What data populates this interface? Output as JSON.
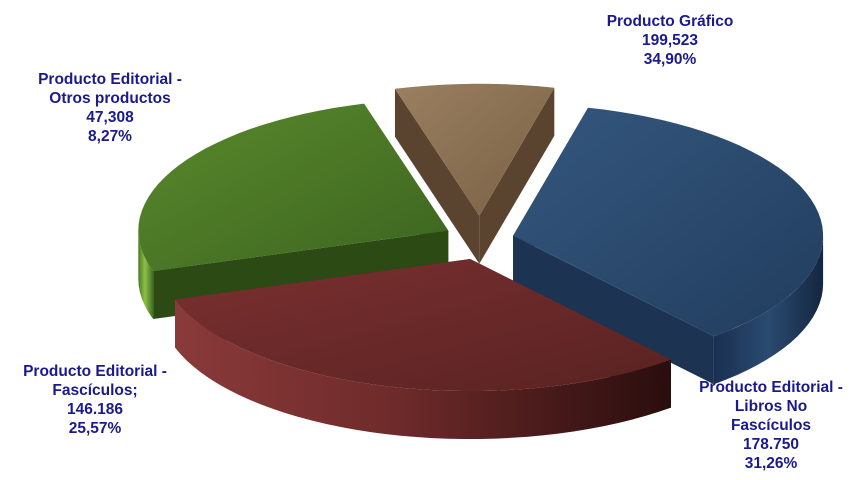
{
  "chart_data": {
    "type": "pie",
    "style": "3d-exploded",
    "title": "",
    "legend": "none",
    "slices": [
      {
        "name": [
          "Producto Gráfico"
        ],
        "value_text": "199,523",
        "percent_text": "34,90%",
        "value": 199523,
        "percent": 34.9,
        "color": "#2a4a6e"
      },
      {
        "name": [
          "Producto Editorial -",
          "Libros No",
          "Fascículos"
        ],
        "value_text": "178.750",
        "percent_text": "31,26%",
        "value": 178750,
        "percent": 31.26,
        "color": "#6e2a2a"
      },
      {
        "name": [
          "Producto Editorial -",
          "Fascículos;"
        ],
        "value_text": "146.186",
        "percent_text": "25,57%",
        "value": 146186,
        "percent": 25.57,
        "color": "#5a8a2a"
      },
      {
        "name": [
          "Producto Editorial -",
          "Otros productos"
        ],
        "value_text": "47,308",
        "percent_text": "8,27%",
        "value": 47308,
        "percent": 8.27,
        "color": "#8a7050"
      }
    ]
  }
}
